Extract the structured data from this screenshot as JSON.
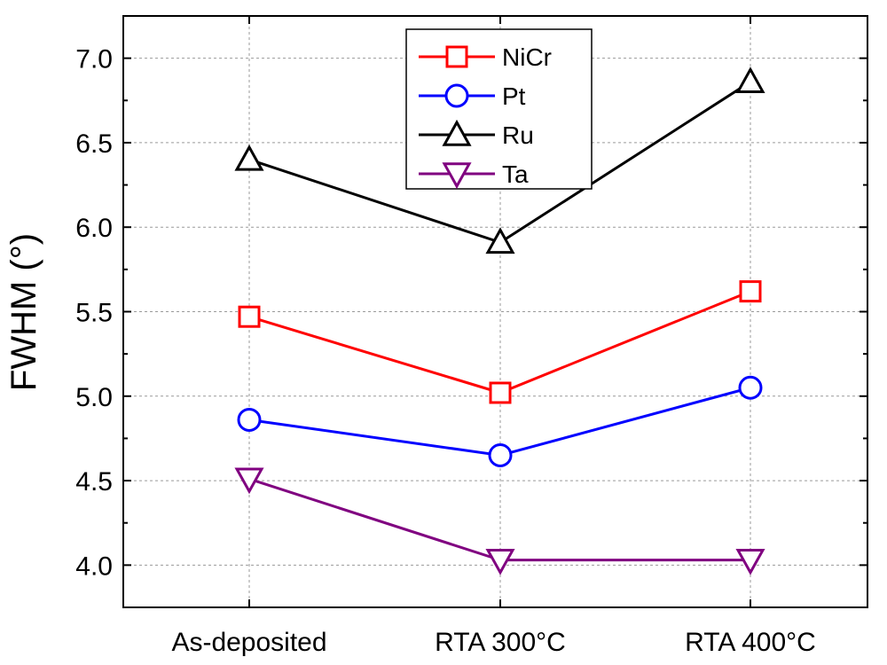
{
  "chart_data": {
    "type": "line",
    "title": "",
    "xlabel": "",
    "ylabel": "FWHM (°)",
    "categories": [
      "As-deposited",
      "RTA 300°C",
      "RTA 400°C"
    ],
    "ylim": [
      3.75,
      7.25
    ],
    "yticks": [
      4.0,
      4.5,
      5.0,
      5.5,
      6.0,
      6.5,
      7.0
    ],
    "ytick_labels": [
      "4.0",
      "4.5",
      "5.0",
      "5.5",
      "6.0",
      "6.5",
      "7.0"
    ],
    "grid": true,
    "legend_position": "top-center",
    "series": [
      {
        "name": "NiCr",
        "values": [
          5.47,
          5.02,
          5.62
        ],
        "color": "#ff0000",
        "marker": "square"
      },
      {
        "name": "Pt",
        "values": [
          4.86,
          4.65,
          5.05
        ],
        "color": "#0000ff",
        "marker": "circle"
      },
      {
        "name": "Ru",
        "values": [
          6.4,
          5.91,
          6.86
        ],
        "color": "#000000",
        "marker": "triangle-up"
      },
      {
        "name": "Ta",
        "values": [
          4.51,
          4.03,
          4.03
        ],
        "color": "#800080",
        "marker": "triangle-down"
      }
    ]
  }
}
